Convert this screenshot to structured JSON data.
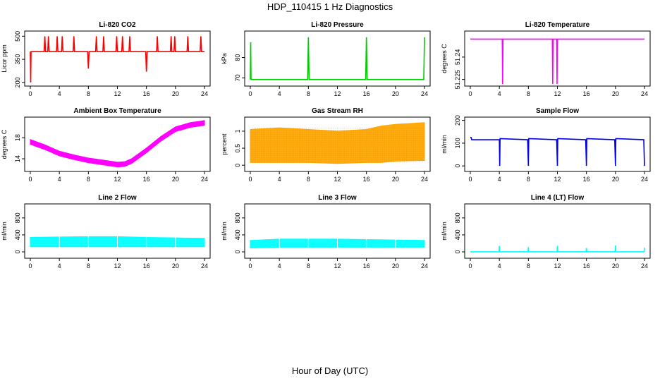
{
  "page": {
    "title": "HDP_110415  1 Hz Diagnostics",
    "xlabel": "Hour of Day (UTC)"
  },
  "chart_data": [
    {
      "type": "line",
      "title": "Li-820 CO2",
      "ylabel": "Licor ppm",
      "color": "#ff0000",
      "xlim": [
        0,
        24
      ],
      "ylim": [
        190,
        520
      ],
      "xticks": [
        0,
        4,
        8,
        12,
        16,
        20,
        24
      ],
      "yticks": [
        200,
        350,
        500
      ],
      "series": [
        {
          "x": [
            0,
            0.05,
            0.1,
            0.2,
            1,
            1.9,
            2.0,
            2.1,
            2.4,
            2.5,
            2.6,
            3.6,
            3.7,
            3.8,
            4.3,
            4.4,
            4.5,
            5.9,
            6.0,
            6.1,
            7.9,
            8.0,
            8.1,
            9.0,
            9.1,
            9.2,
            10.0,
            10.1,
            10.2,
            11.8,
            11.9,
            12.0,
            12.6,
            12.7,
            12.8,
            13.6,
            13.7,
            13.8,
            15.9,
            16.0,
            16.1,
            17.4,
            17.5,
            17.6,
            19.3,
            19.4,
            19.5,
            19.8,
            19.9,
            20.0,
            21.6,
            21.7,
            21.8,
            23.4,
            23.5,
            23.6,
            24
          ],
          "y": [
            400,
            200,
            400,
            400,
            400,
            400,
            500,
            400,
            400,
            500,
            400,
            400,
            500,
            400,
            400,
            500,
            400,
            400,
            500,
            400,
            400,
            290,
            400,
            400,
            500,
            400,
            400,
            500,
            400,
            400,
            500,
            400,
            400,
            500,
            400,
            400,
            500,
            400,
            400,
            270,
            400,
            400,
            500,
            400,
            400,
            500,
            400,
            400,
            500,
            400,
            400,
            500,
            400,
            400,
            500,
            400,
            400
          ]
        }
      ]
    },
    {
      "type": "line",
      "title": "Li-820 Pressure",
      "ylabel": "kPa",
      "color": "#00cc00",
      "xlim": [
        0,
        24
      ],
      "ylim": [
        67,
        92
      ],
      "xticks": [
        0,
        4,
        8,
        12,
        16,
        20,
        24
      ],
      "yticks": [
        70,
        80
      ],
      "series": [
        {
          "x": [
            0,
            0.05,
            0.1,
            0.2,
            7.9,
            8.0,
            8.1,
            15.9,
            16.0,
            16.1,
            23.9,
            24.0
          ],
          "y": [
            69.2,
            87.5,
            69.2,
            69.2,
            69.2,
            90,
            69.2,
            69.2,
            90,
            69.2,
            69.2,
            90
          ]
        }
      ]
    },
    {
      "type": "line",
      "title": "Li-820 Temperature",
      "ylabel": "degrees C",
      "color": "#ff00ff",
      "xlim": [
        0,
        24
      ],
      "ylim": [
        51.222,
        51.256
      ],
      "xticks": [
        0,
        4,
        8,
        12,
        16,
        20,
        24
      ],
      "yticks": [
        51.225,
        51.24
      ],
      "series": [
        {
          "x": [
            0,
            4.4,
            4.45,
            4.5,
            11.3,
            11.35,
            11.4,
            11.9,
            11.95,
            12.0,
            24
          ],
          "y": [
            51.252,
            51.252,
            51.222,
            51.252,
            51.252,
            51.222,
            51.252,
            51.252,
            51.222,
            51.252,
            51.252
          ]
        }
      ]
    },
    {
      "type": "area",
      "title": "Ambient Box Temperature",
      "ylabel": "degrees C",
      "color": "#ff00ff",
      "xlim": [
        0,
        24
      ],
      "ylim": [
        12,
        21.5
      ],
      "xticks": [
        0,
        4,
        8,
        12,
        16,
        20,
        24
      ],
      "yticks": [
        14,
        18
      ],
      "series": [
        {
          "x": [
            0,
            2,
            4,
            6,
            8,
            10,
            12,
            13,
            14,
            16,
            18,
            20,
            22,
            24
          ],
          "y": [
            17.2,
            16.2,
            15.0,
            14.3,
            13.7,
            13.3,
            12.9,
            13.0,
            13.6,
            15.6,
            17.8,
            19.6,
            20.4,
            20.8
          ],
          "band": 0.45
        }
      ]
    },
    {
      "type": "area",
      "title": "Gas Stream RH",
      "ylabel": "percent",
      "color": "#ffa500",
      "xlim": [
        0,
        24
      ],
      "ylim": [
        -0.12,
        1.35
      ],
      "xticks": [
        0,
        4,
        8,
        12,
        16,
        20,
        24
      ],
      "yticks": [
        0.0,
        0.5,
        1.0
      ],
      "series": [
        {
          "x": [
            0,
            4,
            8,
            12,
            16,
            18,
            20,
            24
          ],
          "low": [
            0.08,
            0.08,
            0.08,
            0.05,
            0.08,
            0.08,
            0.12,
            0.14
          ],
          "high": [
            1.05,
            1.1,
            1.05,
            1.0,
            1.05,
            1.15,
            1.2,
            1.25
          ]
        }
      ]
    },
    {
      "type": "line",
      "title": "Sample Flow",
      "ylabel": "ml/min",
      "color": "#0000ee",
      "xlim": [
        0,
        24
      ],
      "ylim": [
        -15,
        205
      ],
      "xticks": [
        0,
        4,
        8,
        12,
        16,
        20,
        24
      ],
      "yticks": [
        0,
        100,
        200
      ],
      "series": [
        {
          "x": [
            0,
            0.1,
            0.2,
            4.0,
            4.05,
            4.1,
            7.9,
            8.0,
            8.05,
            11.9,
            12.0,
            12.05,
            15.9,
            16.0,
            16.05,
            19.9,
            20.0,
            20.05,
            23.9,
            24.0
          ],
          "y": [
            125,
            125,
            115,
            115,
            0,
            120,
            115,
            0,
            120,
            115,
            0,
            120,
            115,
            0,
            120,
            115,
            0,
            120,
            115,
            0
          ]
        }
      ]
    },
    {
      "type": "area",
      "title": "Line 2 Flow",
      "ylabel": "ml/min",
      "color": "#00ffff",
      "xlim": [
        0,
        24
      ],
      "ylim": [
        -100,
        1080
      ],
      "xticks": [
        0,
        4,
        8,
        12,
        16,
        20,
        24
      ],
      "yticks": [
        0,
        400,
        800
      ],
      "series": [
        {
          "x": [
            0,
            4,
            8,
            12,
            16,
            20,
            24
          ],
          "low": [
            120,
            120,
            120,
            120,
            120,
            120,
            120
          ],
          "high": [
            340,
            350,
            360,
            360,
            340,
            330,
            320
          ]
        }
      ]
    },
    {
      "type": "area",
      "title": "Line 3 Flow",
      "ylabel": "ml/min",
      "color": "#00ffff",
      "xlim": [
        0,
        24
      ],
      "ylim": [
        -100,
        1080
      ],
      "xticks": [
        0,
        4,
        8,
        12,
        16,
        20,
        24
      ],
      "yticks": [
        0,
        400,
        800
      ],
      "series": [
        {
          "x": [
            0,
            4,
            8,
            12,
            16,
            20,
            24
          ],
          "low": [
            90,
            110,
            110,
            110,
            110,
            110,
            110
          ],
          "high": [
            270,
            300,
            300,
            300,
            290,
            280,
            270
          ]
        }
      ]
    },
    {
      "type": "line",
      "title": "Line 4 (LT) Flow",
      "ylabel": "ml/min",
      "color": "#00ffff",
      "xlim": [
        0,
        24
      ],
      "ylim": [
        -100,
        1080
      ],
      "xticks": [
        0,
        4,
        8,
        12,
        16,
        20,
        24
      ],
      "yticks": [
        0,
        400,
        800
      ],
      "series": [
        {
          "x": [
            0,
            3.95,
            4.0,
            4.05,
            7.95,
            8.0,
            8.05,
            11.95,
            12.0,
            12.05,
            15.95,
            16.0,
            16.05,
            19.95,
            20.0,
            20.05,
            23.95,
            24.0
          ],
          "y": [
            0,
            0,
            140,
            0,
            0,
            110,
            0,
            0,
            140,
            0,
            0,
            90,
            0,
            0,
            150,
            0,
            0,
            100
          ]
        }
      ]
    }
  ]
}
